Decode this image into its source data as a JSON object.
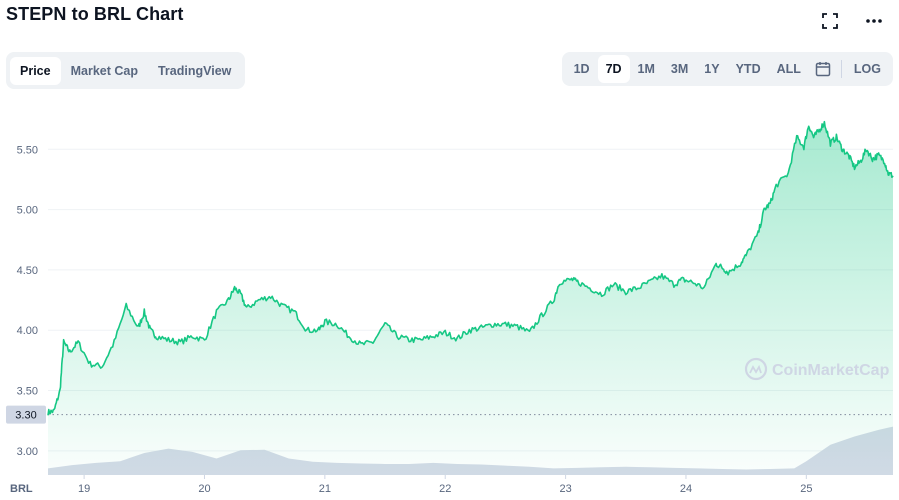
{
  "header": {
    "title": "STEPN to BRL Chart",
    "fullscreen_icon": "fullscreen-icon",
    "more_icon": "more-horizontal-icon"
  },
  "tabs": [
    {
      "label": "Price",
      "active": true
    },
    {
      "label": "Market Cap",
      "active": false
    },
    {
      "label": "TradingView",
      "active": false
    }
  ],
  "ranges": [
    {
      "label": "1D",
      "active": false
    },
    {
      "label": "7D",
      "active": true
    },
    {
      "label": "1M",
      "active": false
    },
    {
      "label": "3M",
      "active": false
    },
    {
      "label": "1Y",
      "active": false
    },
    {
      "label": "YTD",
      "active": false
    },
    {
      "label": "ALL",
      "active": false
    }
  ],
  "calendar_icon": "calendar-icon",
  "log_label": "LOG",
  "watermark": "CoinMarketCap",
  "colors": {
    "line": "#16c784",
    "area_top": "#16c784",
    "volume": "#cfd6e4",
    "grid": "#eff2f5",
    "tag_bg": "#cfd6e4"
  },
  "chart_data": {
    "type": "area",
    "currency_label": "BRL",
    "ylim": [
      2.8,
      5.95
    ],
    "yticks": [
      "5.50",
      "5.00",
      "4.50",
      "4.00",
      "3.50",
      "3.00"
    ],
    "ytick_values": [
      5.5,
      5.0,
      4.5,
      4.0,
      3.5,
      3.0
    ],
    "xticks": [
      "19",
      "20",
      "21",
      "22",
      "23",
      "24",
      "25"
    ],
    "xtick_values": [
      19,
      20,
      21,
      22,
      23,
      24,
      25
    ],
    "xlim": [
      18.7,
      25.72
    ],
    "reference_value": 3.3,
    "reference_label": "3.30",
    "price": {
      "x": [
        18.7,
        18.75,
        18.8,
        18.83,
        18.88,
        18.95,
        19.05,
        19.15,
        19.25,
        19.35,
        19.45,
        19.5,
        19.55,
        19.6,
        19.7,
        19.8,
        19.9,
        20.0,
        20.1,
        20.2,
        20.25,
        20.3,
        20.35,
        20.45,
        20.55,
        20.65,
        20.75,
        20.85,
        20.95,
        21.0,
        21.1,
        21.2,
        21.3,
        21.4,
        21.5,
        21.6,
        21.7,
        21.8,
        21.9,
        22.0,
        22.1,
        22.2,
        22.3,
        22.4,
        22.5,
        22.6,
        22.7,
        22.8,
        22.9,
        22.95,
        23.05,
        23.1,
        23.2,
        23.3,
        23.4,
        23.5,
        23.6,
        23.7,
        23.8,
        23.9,
        23.97,
        24.05,
        24.15,
        24.25,
        24.3,
        24.35,
        24.45,
        24.5,
        24.6,
        24.65,
        24.7,
        24.75,
        24.85,
        24.92,
        24.98,
        25.02,
        25.06,
        25.1,
        25.15,
        25.2,
        25.25,
        25.3,
        25.35,
        25.4,
        25.45,
        25.5,
        25.55,
        25.6,
        25.65,
        25.68,
        25.72
      ],
      "y": [
        3.32,
        3.33,
        3.5,
        3.9,
        3.82,
        3.9,
        3.72,
        3.7,
        3.9,
        4.2,
        4.02,
        4.15,
        4.0,
        3.95,
        3.92,
        3.9,
        3.95,
        3.92,
        4.15,
        4.25,
        4.35,
        4.3,
        4.18,
        4.25,
        4.28,
        4.2,
        4.15,
        4.0,
        4.0,
        4.07,
        4.05,
        3.95,
        3.88,
        3.9,
        4.05,
        3.95,
        3.92,
        3.92,
        3.95,
        3.98,
        3.93,
        4.0,
        4.02,
        4.05,
        4.05,
        4.03,
        3.98,
        4.12,
        4.25,
        4.4,
        4.42,
        4.4,
        4.35,
        4.3,
        4.38,
        4.32,
        4.35,
        4.4,
        4.45,
        4.38,
        4.42,
        4.4,
        4.35,
        4.55,
        4.52,
        4.48,
        4.55,
        4.62,
        4.8,
        5.0,
        5.05,
        5.2,
        5.3,
        5.6,
        5.52,
        5.7,
        5.6,
        5.65,
        5.72,
        5.55,
        5.6,
        5.5,
        5.45,
        5.35,
        5.4,
        5.5,
        5.42,
        5.45,
        5.4,
        5.3,
        5.28
      ]
    },
    "volume": {
      "x": [
        18.7,
        18.9,
        19.1,
        19.3,
        19.5,
        19.7,
        19.9,
        20.1,
        20.3,
        20.5,
        20.7,
        20.9,
        21.1,
        21.3,
        21.5,
        21.7,
        21.9,
        22.1,
        22.3,
        22.5,
        22.7,
        22.9,
        23.1,
        23.3,
        23.5,
        23.7,
        23.9,
        24.1,
        24.3,
        24.5,
        24.7,
        24.9,
        25.0,
        25.2,
        25.4,
        25.6,
        25.72
      ],
      "values": [
        0.12,
        0.18,
        0.22,
        0.25,
        0.4,
        0.48,
        0.42,
        0.3,
        0.45,
        0.46,
        0.3,
        0.24,
        0.22,
        0.21,
        0.2,
        0.2,
        0.22,
        0.2,
        0.19,
        0.17,
        0.15,
        0.12,
        0.13,
        0.14,
        0.15,
        0.14,
        0.13,
        0.12,
        0.11,
        0.1,
        0.11,
        0.12,
        0.25,
        0.55,
        0.7,
        0.82,
        0.88
      ]
    }
  }
}
